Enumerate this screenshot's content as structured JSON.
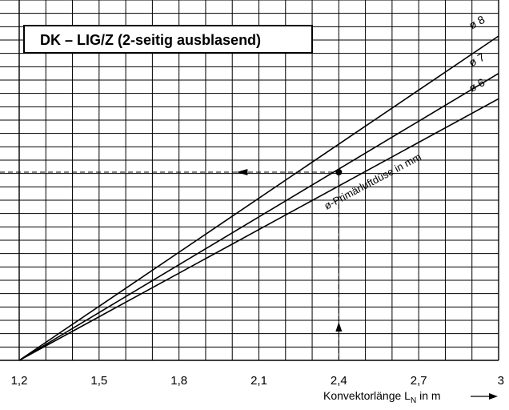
{
  "chart_data": {
    "type": "line",
    "title": "DK – LIG/Z  (2-seitig ausblasend)",
    "xlabel_main": "Konvektorlänge L",
    "xlabel_sub": "N",
    "xlabel_tail": " in m",
    "xlim": [
      1.2,
      3.0
    ],
    "x_ticks": [
      1.2,
      1.5,
      1.8,
      2.1,
      2.4,
      2.7,
      3.0
    ],
    "x_tick_labels": [
      "1,2",
      "1,5",
      "1,8",
      "2,1",
      "2,4",
      "2,7",
      "3"
    ],
    "ylim": [
      0,
      27
    ],
    "grid": true,
    "series": [
      {
        "name": "ø 8",
        "x": [
          1.2,
          3.0
        ],
        "y": [
          0,
          24.3
        ]
      },
      {
        "name": "ø 7",
        "x": [
          1.2,
          3.0
        ],
        "y": [
          0,
          21.5
        ]
      },
      {
        "name": "ø 6",
        "x": [
          1.2,
          3.0
        ],
        "y": [
          0,
          19.6
        ]
      }
    ],
    "annotation": "ø-Primärluftdüse in mm",
    "reading_example": {
      "x": 2.4,
      "y": 14.1
    }
  }
}
